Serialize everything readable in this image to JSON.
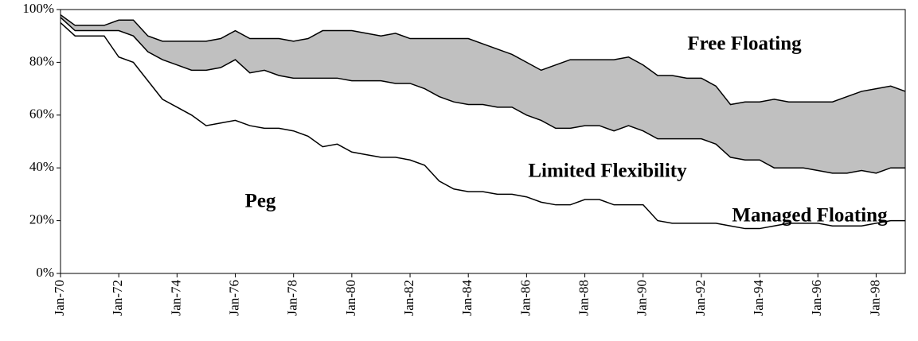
{
  "chart_data": {
    "type": "area",
    "stacked": true,
    "x": [
      1970,
      1970.5,
      1971,
      1971.5,
      1972,
      1972.5,
      1973,
      1973.5,
      1974,
      1974.5,
      1975,
      1975.5,
      1976,
      1976.5,
      1977,
      1977.5,
      1978,
      1978.5,
      1979,
      1979.5,
      1980,
      1980.5,
      1981,
      1981.5,
      1982,
      1982.5,
      1983,
      1983.5,
      1984,
      1984.5,
      1985,
      1985.5,
      1986,
      1986.5,
      1987,
      1987.5,
      1988,
      1988.5,
      1989,
      1989.5,
      1990,
      1990.5,
      1991,
      1991.5,
      1992,
      1992.5,
      1993,
      1993.5,
      1994,
      1994.5,
      1995,
      1995.5,
      1996,
      1996.5,
      1997,
      1997.5,
      1998,
      1998.5,
      1999
    ],
    "series": [
      {
        "name": "Peg",
        "color": "#ffffff",
        "values": [
          95,
          90,
          90,
          90,
          82,
          80,
          73,
          66,
          63,
          60,
          56,
          57,
          58,
          56,
          55,
          55,
          54,
          52,
          48,
          49,
          46,
          45,
          44,
          44,
          43,
          41,
          35,
          32,
          31,
          31,
          30,
          30,
          29,
          27,
          26,
          26,
          28,
          28,
          26,
          26,
          26,
          20,
          19,
          19,
          19,
          19,
          18,
          17,
          17,
          18,
          19,
          19,
          19,
          18,
          18,
          18,
          19,
          20,
          20
        ]
      },
      {
        "name": "Limited Flexibility",
        "color": "#ffffff",
        "values": [
          2,
          2,
          2,
          2,
          10,
          10,
          11,
          15,
          16,
          17,
          21,
          21,
          23,
          20,
          22,
          20,
          20,
          22,
          26,
          25,
          27,
          28,
          29,
          28,
          29,
          29,
          32,
          33,
          33,
          33,
          33,
          33,
          31,
          31,
          29,
          29,
          28,
          28,
          28,
          30,
          28,
          31,
          32,
          32,
          32,
          30,
          26,
          26,
          26,
          22,
          21,
          21,
          20,
          20,
          20,
          21,
          19,
          20,
          20
        ]
      },
      {
        "name": "Managed Floating",
        "color": "#c0c0c0",
        "values": [
          1,
          2,
          2,
          2,
          4,
          6,
          6,
          7,
          9,
          11,
          11,
          11,
          11,
          13,
          12,
          14,
          14,
          15,
          18,
          18,
          19,
          18,
          17,
          19,
          17,
          19,
          22,
          24,
          25,
          23,
          22,
          20,
          20,
          19,
          24,
          26,
          25,
          25,
          27,
          26,
          25,
          24,
          24,
          23,
          23,
          22,
          20,
          22,
          22,
          26,
          25,
          25,
          26,
          27,
          29,
          30,
          32,
          31,
          29
        ]
      },
      {
        "name": "Free Floating",
        "color": "#ffffff",
        "values": [
          2,
          6,
          6,
          6,
          4,
          4,
          10,
          12,
          12,
          12,
          12,
          11,
          8,
          11,
          11,
          11,
          12,
          11,
          8,
          8,
          8,
          9,
          10,
          9,
          11,
          11,
          11,
          11,
          11,
          13,
          15,
          17,
          20,
          23,
          21,
          19,
          19,
          19,
          19,
          18,
          21,
          25,
          25,
          26,
          26,
          29,
          36,
          35,
          35,
          34,
          35,
          35,
          35,
          35,
          33,
          31,
          30,
          29,
          31
        ]
      }
    ],
    "xlim": [
      1970,
      1999
    ],
    "xticks": [
      {
        "value": 1970,
        "label": "Jan-70"
      },
      {
        "value": 1972,
        "label": "Jan-72"
      },
      {
        "value": 1974,
        "label": "Jan-74"
      },
      {
        "value": 1976,
        "label": "Jan-76"
      },
      {
        "value": 1978,
        "label": "Jan-78"
      },
      {
        "value": 1980,
        "label": "Jan-80"
      },
      {
        "value": 1982,
        "label": "Jan-82"
      },
      {
        "value": 1984,
        "label": "Jan-84"
      },
      {
        "value": 1986,
        "label": "Jan-86"
      },
      {
        "value": 1988,
        "label": "Jan-88"
      },
      {
        "value": 1990,
        "label": "Jan-90"
      },
      {
        "value": 1992,
        "label": "Jan-92"
      },
      {
        "value": 1994,
        "label": "Jan-94"
      },
      {
        "value": 1996,
        "label": "Jan-96"
      },
      {
        "value": 1998,
        "label": "Jan-98"
      }
    ],
    "ylim": [
      0,
      100
    ],
    "yticks": [
      {
        "value": 0,
        "label": "0%"
      },
      {
        "value": 20,
        "label": "20%"
      },
      {
        "value": 40,
        "label": "40%"
      },
      {
        "value": 60,
        "label": "60%"
      },
      {
        "value": 80,
        "label": "80%"
      },
      {
        "value": 100,
        "label": "100%"
      }
    ],
    "line_color": "#000000"
  }
}
